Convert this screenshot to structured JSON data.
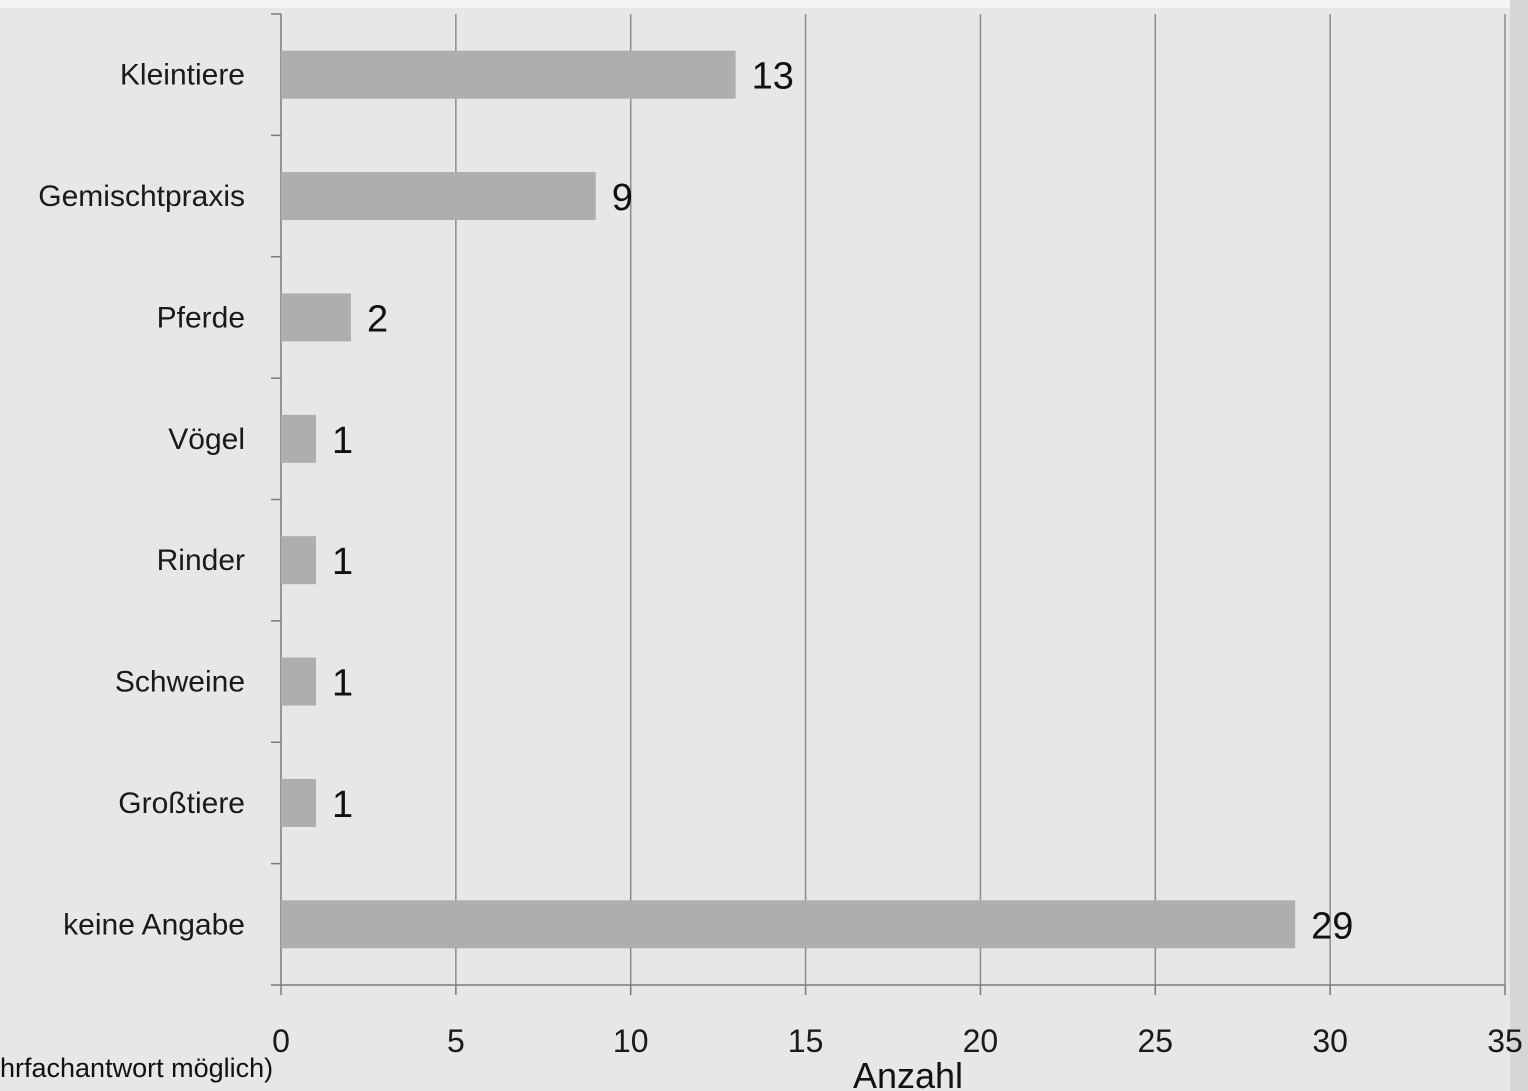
{
  "colors": {
    "background": "#e7e7e7",
    "bar": "#aeaeae",
    "gridline": "#8c8c8c",
    "axis": "#7a7a7a"
  },
  "chart_data": {
    "type": "bar",
    "orientation": "horizontal",
    "categories": [
      "Kleintiere",
      "Gemischtpraxis",
      "Pferde",
      "Vögel",
      "Rinder",
      "Schweine",
      "Großtiere",
      "keine Angabe"
    ],
    "values": [
      13,
      9,
      2,
      1,
      1,
      1,
      1,
      29
    ],
    "data_labels": [
      "13",
      "9",
      "2",
      "1",
      "1",
      "1",
      "1",
      "29"
    ],
    "xlabel": "Anzahl",
    "xlim": [
      0,
      35
    ],
    "xticks": [
      0,
      5,
      10,
      15,
      20,
      25,
      30,
      35
    ],
    "xtick_labels": [
      "0",
      "5",
      "10",
      "15",
      "20",
      "25",
      "30",
      "35"
    ],
    "grid": "vertical",
    "legend": "none",
    "footnote": "hrfachantwort möglich)"
  }
}
